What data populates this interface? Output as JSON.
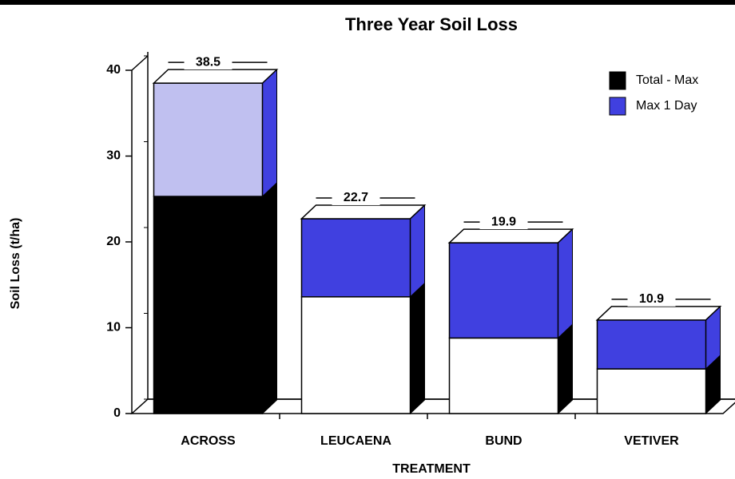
{
  "chart_data": {
    "type": "bar3d_stacked",
    "title": "Three Year Soil Loss",
    "x_label": "TREATMENT",
    "y_label": "Soil Loss (t/ha)",
    "categories": [
      "ACROSS",
      "LEUCAENA",
      "BUND",
      "VETIVER"
    ],
    "series": [
      {
        "name": "Total - Max",
        "color": "#000000",
        "bar_colors": [
          "#000000",
          "#ffffff",
          "#ffffff",
          "#ffffff"
        ],
        "side_color": "#000000",
        "values": [
          25.3,
          13.6,
          8.8,
          5.2
        ]
      },
      {
        "name": "Max 1 Day",
        "color": "#4040e0",
        "bar_colors": [
          "#c0c0f0",
          "#4040e0",
          "#4040e0",
          "#4040e0"
        ],
        "side_color": "#4040e0",
        "values": [
          13.2,
          9.1,
          11.1,
          5.7
        ]
      }
    ],
    "totals": [
      38.5,
      22.7,
      19.9,
      10.9
    ],
    "ylim": [
      0,
      40
    ],
    "yticks": [
      0,
      10,
      20,
      30,
      40
    ],
    "legend": "top-right"
  }
}
